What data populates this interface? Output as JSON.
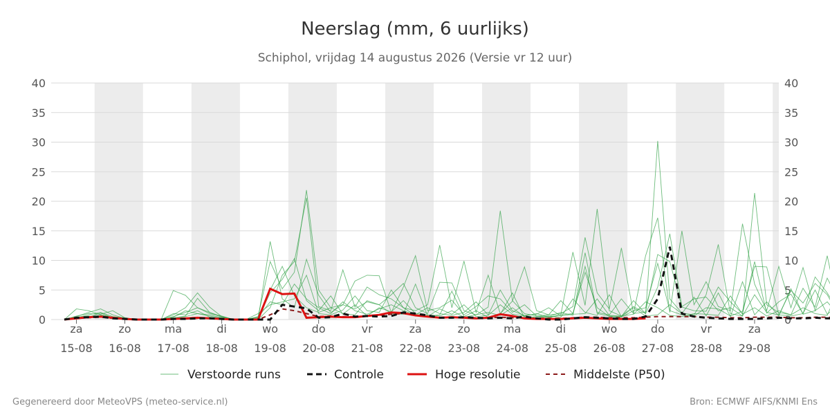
{
  "chart_data": {
    "type": "line",
    "title": "Neerslag (mm, 6 uurlijks)",
    "subtitle": "Schiphol, vrijdag 14 augustus 2026 (Versie vr 12 uur)",
    "ylim": [
      0,
      40
    ],
    "yticks": [
      0,
      5,
      10,
      15,
      20,
      25,
      30,
      35,
      40
    ],
    "x_start": "2026-08-14T18:00",
    "x_end": "2026-08-29T12:00",
    "x_step_hours": 6,
    "grid": true,
    "x_tick_labels": [
      {
        "day": "za",
        "date": "15-08"
      },
      {
        "day": "zo",
        "date": "16-08"
      },
      {
        "day": "ma",
        "date": "17-08"
      },
      {
        "day": "di",
        "date": "18-08"
      },
      {
        "day": "wo",
        "date": "19-08"
      },
      {
        "day": "do",
        "date": "20-08"
      },
      {
        "day": "vr",
        "date": "21-08"
      },
      {
        "day": "za",
        "date": "22-08"
      },
      {
        "day": "zo",
        "date": "23-08"
      },
      {
        "day": "ma",
        "date": "24-08"
      },
      {
        "day": "di",
        "date": "25-08"
      },
      {
        "day": "wo",
        "date": "26-08"
      },
      {
        "day": "do",
        "date": "27-08"
      },
      {
        "day": "vr",
        "date": "28-08"
      },
      {
        "day": "za",
        "date": "29-08"
      }
    ],
    "legend_position": "bottom",
    "series": [
      {
        "name": "Controle",
        "color": "#111111",
        "style": "dashed",
        "values": [
          0,
          0.3,
          0.4,
          0.5,
          0.2,
          0.1,
          0,
          0,
          0,
          0.1,
          0.1,
          0.2,
          0.2,
          0.1,
          0,
          0,
          0,
          0,
          2.5,
          2.2,
          1.9,
          0.3,
          0.4,
          1.0,
          0.5,
          0.6,
          0.5,
          0.6,
          1.2,
          1.0,
          0.7,
          0.3,
          0.3,
          0.4,
          0.3,
          0.2,
          0.3,
          0.2,
          0.5,
          0.2,
          0,
          0,
          0.2,
          0.4,
          0.3,
          0.2,
          0.1,
          0.1,
          0.5,
          3.5,
          12.3,
          1.0,
          0.5,
          0.3,
          0.2,
          0.1,
          0.1,
          0.1,
          0.2,
          0.3,
          0.2,
          0.2,
          0.3,
          0.2,
          0.2,
          0.1,
          0.1,
          0.1,
          0.2,
          0.3,
          0.2,
          0.2,
          0.2,
          0.1,
          0.2,
          0.3,
          0.3,
          0.1,
          0.1,
          0.2
        ]
      },
      {
        "name": "Hoge resolutie",
        "color": "#dd1111",
        "style": "solid",
        "values": [
          0,
          0.2,
          0.4,
          0.5,
          0.3,
          0.1,
          0,
          0,
          0,
          0.1,
          0.2,
          0.3,
          0.2,
          0.1,
          0,
          0,
          0,
          5.2,
          4.3,
          4.4,
          0.3,
          0.4,
          0.5,
          0.4,
          0.4,
          0.6,
          0.8,
          1.2,
          1.1,
          0.7,
          0.5,
          0.3,
          0.4,
          0.3,
          0.2,
          0.3,
          0.9,
          0.6,
          0.2,
          0.1,
          0.1,
          0.1,
          0.2,
          0.3,
          0.2,
          0.1,
          0.1,
          0.1,
          0.2
        ]
      },
      {
        "name": "Middelste (P50)",
        "color": "#8b1a1a",
        "style": "dashed",
        "values": [
          0,
          0.2,
          0.3,
          0.4,
          0.2,
          0.1,
          0,
          0,
          0,
          0.1,
          0.1,
          0.2,
          0.2,
          0.1,
          0,
          0,
          0,
          0.8,
          1.8,
          1.5,
          1.0,
          0.5,
          0.6,
          0.5,
          0.5,
          0.6,
          0.7,
          0.9,
          1.0,
          0.7,
          0.5,
          0.4,
          0.4,
          0.4,
          0.3,
          0.3,
          0.4,
          0.3,
          0.3,
          0.2,
          0.2,
          0.2,
          0.3,
          0.4,
          0.4,
          0.3,
          0.3,
          0.3,
          0.4,
          0.5,
          0.5,
          0.5,
          0.5,
          0.4,
          0.4,
          0.3,
          0.3,
          0.4,
          0.4,
          0.4,
          0.3,
          0.3,
          0.4,
          0.4,
          0.3,
          0.3,
          0.3,
          0.4,
          0.4,
          0.3,
          0.3,
          0.4,
          0.4,
          0.3,
          0.3,
          0.4,
          0.4,
          0.3,
          0.3,
          0.3
        ]
      },
      {
        "name": "Verstoorde runs",
        "color": "#2ea043",
        "style": "ensemble",
        "members": [
          [
            0,
            1.8,
            1.5,
            0.8,
            0.4,
            0.2,
            0,
            0,
            0,
            4.9,
            4.1,
            2.0,
            1.2,
            0.4,
            0,
            0,
            0,
            13.2,
            3.5,
            2.0,
            10.2,
            4.1,
            1.2,
            2.5,
            1.8,
            3.0,
            2.5,
            4.2,
            6.1,
            2.0,
            1.0,
            6.3,
            6.2,
            1.5,
            0.8,
            2.1,
            18.4,
            3.2,
            1.0,
            0.6,
            0.3,
            0.8,
            11.4,
            2.4,
            18.7,
            1.5,
            0.6,
            2.2,
            1.0,
            30.2,
            3.5,
            1.1,
            0.8,
            4.2,
            12.7,
            1.0,
            0.6,
            21.4,
            2.5,
            1.2,
            0.8,
            5.3,
            2.1,
            10.8,
            1.0,
            14.5,
            9.8,
            10.1,
            1.3,
            0.9,
            10.7,
            8.3,
            1.2,
            2.5,
            0.6,
            0.8,
            2.3,
            0.4,
            0.2,
            0.3
          ],
          [
            0,
            0.5,
            1.2,
            1.8,
            0.8,
            0.2,
            0,
            0,
            0,
            0.8,
            2.0,
            4.5,
            2.1,
            0.5,
            0,
            0,
            0,
            2.0,
            7.5,
            9.8,
            20.6,
            2.2,
            1.5,
            8.4,
            2.1,
            5.5,
            4.2,
            3.5,
            2.0,
            1.5,
            2.5,
            12.6,
            2.0,
            9.9,
            1.2,
            7.5,
            1.0,
            3.1,
            8.9,
            1.5,
            0.8,
            1.0,
            2.2,
            13.9,
            4.5,
            1.8,
            12.1,
            1.0,
            10.8,
            17.2,
            1.2,
            15.0,
            2.5,
            6.4,
            2.2,
            1.5,
            16.2,
            6.0,
            1.5,
            9.0,
            2.0,
            8.8,
            1.5,
            7.0,
            3.0,
            9.1,
            5.2,
            2.0,
            5.5,
            6.2,
            8.7,
            2.1,
            9.3,
            1.5,
            2.0,
            7.0,
            0.9,
            1.4,
            0.6,
            1.0
          ],
          [
            0,
            0.3,
            0.8,
            1.2,
            0.5,
            0.3,
            0,
            0,
            0,
            0.5,
            1.2,
            2.0,
            1.0,
            0.6,
            0,
            0,
            0.5,
            9.8,
            5.2,
            8.0,
            21.9,
            5.0,
            2.0,
            2.5,
            6.5,
            7.5,
            7.4,
            1.2,
            5.5,
            10.8,
            1.5,
            2.0,
            3.3,
            0.8,
            2.2,
            4.0,
            3.5,
            1.2,
            2.5,
            0.6,
            0.8,
            3.2,
            1.0,
            9.0,
            1.2,
            0.8,
            3.5,
            1.0,
            1.3,
            11.0,
            9.8,
            2.1,
            1.5,
            1.4,
            5.5,
            3.0,
            1.0,
            9.8,
            1.1,
            3.0,
            4.3,
            1.0,
            7.2,
            4.5,
            1.2,
            3.8,
            0.6,
            2.2,
            1.3,
            3.5,
            9.2,
            2.3,
            3.2,
            0.7,
            1.2,
            2.7,
            0.3,
            2.9,
            0.6,
            1.6
          ],
          [
            0,
            0.6,
            1.0,
            0.9,
            1.5,
            0.3,
            0,
            0,
            0,
            0.3,
            0.6,
            3.6,
            1.2,
            0.5,
            0,
            0,
            0.2,
            4.5,
            6.8,
            10.3,
            3.2,
            1.5,
            4.0,
            0.9,
            2.5,
            0.6,
            2.0,
            1.3,
            3.2,
            1.0,
            0.8,
            0.6,
            1.5,
            0.4,
            0.8,
            1.2,
            0.7,
            2.0,
            0.5,
            0.3,
            0.5,
            1.2,
            0.7,
            11.3,
            1.0,
            0.6,
            0.5,
            3.2,
            1.0,
            5.5,
            14.5,
            2.2,
            3.5,
            3.8,
            1.5,
            2.0,
            0.6,
            4.2,
            1.2,
            0.8,
            4.9,
            2.8,
            6.1,
            4.2,
            0.7,
            2.0,
            0.3,
            0.9,
            3.5,
            0.4,
            4.1,
            1.1,
            2.0,
            0.5,
            2.0,
            1.3,
            0.5,
            2.6,
            0.2,
            0.6
          ],
          [
            0,
            0.2,
            0.4,
            1.1,
            0.3,
            0.2,
            0,
            0,
            0,
            1.0,
            0.8,
            1.5,
            0.4,
            0.2,
            0,
            0,
            1.0,
            2.5,
            3.0,
            3.5,
            7.5,
            1.0,
            0.8,
            1.6,
            4.0,
            1.5,
            1.2,
            5.0,
            2.0,
            0.7,
            0.5,
            1.8,
            0.9,
            2.5,
            0.5,
            0.7,
            2.5,
            0.9,
            0.6,
            1.0,
            0.4,
            0.8,
            1.0,
            8.0,
            2.0,
            0.5,
            0.4,
            1.5,
            2.0,
            9.5,
            1.5,
            0.8,
            0.6,
            2.0,
            1.8,
            0.6,
            1.4,
            9.0,
            8.9,
            0.8,
            0.6,
            1.0,
            5.0,
            0.9,
            2.5,
            0.6,
            1.0,
            0.5,
            2.0,
            0.8,
            1.4,
            0.4,
            1.2,
            1.8,
            0.7,
            0.9,
            0.4,
            0.5,
            0.3,
            0.5
          ],
          [
            0,
            0.4,
            0.6,
            0.5,
            0.3,
            0.1,
            0,
            0,
            0,
            0.2,
            0.5,
            1.0,
            0.8,
            0.3,
            0,
            0,
            0.3,
            5.0,
            9.0,
            4.0,
            2.0,
            1.2,
            2.0,
            1.0,
            0.8,
            3.2,
            2.5,
            1.0,
            0.9,
            6.0,
            0.6,
            0.8,
            4.8,
            0.5,
            1.5,
            0.4,
            0.9,
            4.5,
            0.3,
            0.5,
            0.6,
            0.4,
            3.5,
            1.2,
            0.7,
            4.2,
            0.5,
            2.0,
            0.6,
            0.8,
            2.5,
            1.0,
            3.8,
            0.6,
            4.5,
            0.5,
            6.4,
            0.8,
            3.0,
            0.6,
            5.2,
            0.9,
            1.5,
            3.0,
            0.6,
            1.5,
            2.2,
            7.3,
            0.5,
            1.2,
            3.0,
            0.6,
            2.2,
            0.9,
            1.0,
            0.7,
            2.1,
            0.3,
            1.5,
            0.4
          ],
          [
            0,
            0.3,
            0.5,
            0.7,
            0.4,
            0.2,
            0,
            0,
            0,
            0.4,
            1.5,
            1.0,
            0.6,
            0.2,
            0,
            0,
            0.4,
            3.0,
            2.5,
            6.0,
            3.5,
            2.0,
            1.0,
            3.0,
            1.5,
            0.9,
            1.8,
            2.5,
            1.5,
            0.8,
            2.0,
            1.0,
            0.7,
            1.2,
            3.0,
            0.8,
            5.0,
            1.5,
            0.7,
            0.9,
            2.0,
            0.6,
            0.9,
            1.0,
            3.5,
            0.7,
            0.6,
            0.9,
            3.0,
            2.0,
            0.7,
            0.5,
            1.0,
            0.9,
            0.7,
            4.0,
            0.9,
            2.0,
            0.6,
            1.5,
            0.8,
            2.0,
            1.0,
            0.7,
            5.5,
            0.8,
            0.9,
            1.2,
            0.7,
            2.5,
            1.0,
            4.5,
            0.8,
            0.7,
            3.8,
            1.0,
            0.6,
            0.9,
            0.3,
            0.7
          ]
        ]
      }
    ]
  },
  "legend": {
    "items": [
      {
        "key": "ensemble",
        "label": "Verstoorde runs"
      },
      {
        "key": "control",
        "label": "Controle"
      },
      {
        "key": "hires",
        "label": "Hoge resolutie"
      },
      {
        "key": "p50",
        "label": "Middelste (P50)"
      }
    ]
  },
  "footer": {
    "left": "Gegenereerd door MeteoVPS (meteo-service.nl)",
    "right": "Bron: ECMWF AIFS/KNMI Ens"
  }
}
